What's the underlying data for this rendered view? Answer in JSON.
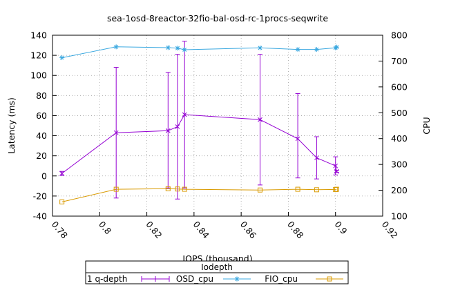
{
  "chart_data": {
    "type": "line",
    "title": "sea-1osd-8reactor-32fio-bal-osd-rc-1procs-seqwrite",
    "xlabel": "IOPS (thousand)",
    "ylabel": "Latency (ms)",
    "y2label": "CPU",
    "xlim": [
      0.78,
      0.92
    ],
    "ylim": [
      -40,
      140
    ],
    "y2lim": [
      100,
      800
    ],
    "xticks": [
      "0.78",
      "0.8",
      "0.82",
      "0.84",
      "0.86",
      "0.88",
      "0.9",
      "0.92"
    ],
    "yticks": [
      "-40",
      "-20",
      "0",
      "20",
      "40",
      "60",
      "80",
      "100",
      "120",
      "140"
    ],
    "y2ticks": [
      "100",
      "200",
      "300",
      "400",
      "500",
      "600",
      "700",
      "800"
    ],
    "grid": true,
    "legend": {
      "title": "Iodepth",
      "position": "bottom",
      "entries": [
        "1 q-depth",
        "OSD_cpu",
        "FIO_cpu"
      ]
    },
    "series": [
      {
        "name": "1 q-depth",
        "axis": "y",
        "color": "#9400d3",
        "marker": "errorbar",
        "points": [
          {
            "x": 0.784,
            "y": 2.5,
            "ylow": 0.5,
            "yhigh": 4.5
          },
          {
            "x": 0.807,
            "y": 43,
            "ylow": -22,
            "yhigh": 108
          },
          {
            "x": 0.829,
            "y": 45,
            "ylow": -12,
            "yhigh": 103
          },
          {
            "x": 0.833,
            "y": 49,
            "ylow": -23,
            "yhigh": 121
          },
          {
            "x": 0.836,
            "y": 61,
            "ylow": -12,
            "yhigh": 134
          },
          {
            "x": 0.868,
            "y": 56,
            "ylow": -9,
            "yhigh": 121
          },
          {
            "x": 0.884,
            "y": 37,
            "ylow": -2,
            "yhigh": 82
          },
          {
            "x": 0.892,
            "y": 18,
            "ylow": -3,
            "yhigh": 39
          },
          {
            "x": 0.9,
            "y": 10,
            "ylow": 1,
            "yhigh": 19
          },
          {
            "x": 0.9005,
            "y": 4.5,
            "ylow": 3.5,
            "yhigh": 5.5
          }
        ]
      },
      {
        "name": "OSD_cpu",
        "axis": "y2",
        "color": "#3aa8e0",
        "marker": "star",
        "points": [
          {
            "x": 0.784,
            "y": 713
          },
          {
            "x": 0.807,
            "y": 755
          },
          {
            "x": 0.829,
            "y": 752
          },
          {
            "x": 0.833,
            "y": 750
          },
          {
            "x": 0.836,
            "y": 744
          },
          {
            "x": 0.868,
            "y": 751
          },
          {
            "x": 0.884,
            "y": 745
          },
          {
            "x": 0.892,
            "y": 745
          },
          {
            "x": 0.9,
            "y": 751
          },
          {
            "x": 0.9005,
            "y": 754
          }
        ]
      },
      {
        "name": "FIO_cpu",
        "axis": "y2",
        "color": "#d99a00",
        "marker": "square",
        "points": [
          {
            "x": 0.784,
            "y": 155
          },
          {
            "x": 0.807,
            "y": 204
          },
          {
            "x": 0.829,
            "y": 206
          },
          {
            "x": 0.833,
            "y": 205
          },
          {
            "x": 0.836,
            "y": 204
          },
          {
            "x": 0.868,
            "y": 201
          },
          {
            "x": 0.884,
            "y": 204
          },
          {
            "x": 0.892,
            "y": 202
          },
          {
            "x": 0.9,
            "y": 203
          },
          {
            "x": 0.9005,
            "y": 204
          }
        ]
      }
    ]
  }
}
